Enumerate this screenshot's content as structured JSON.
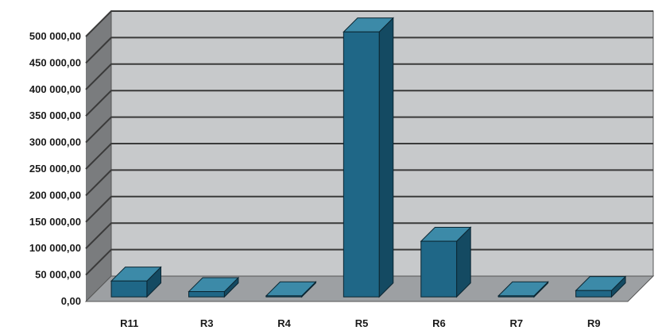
{
  "chart_data": {
    "type": "bar",
    "style": "3d-column",
    "categories": [
      "R11",
      "R3",
      "R4",
      "R5",
      "R6",
      "R7",
      "R9"
    ],
    "values": [
      30000,
      10000,
      2000,
      500000,
      105000,
      2000,
      12000
    ],
    "ylim": [
      0,
      500000
    ],
    "yticks": [
      "0,00",
      "50 000,00",
      "100 000,00",
      "150 000,00",
      "200 000,00",
      "250 000,00",
      "300 000,00",
      "350 000,00",
      "400 000,00",
      "450 000,00",
      "500 000,00"
    ],
    "grid": true,
    "legend": "none",
    "colors": {
      "bar_front": "#1f6787",
      "bar_top": "#3c8aa8",
      "bar_side": "#144a62",
      "wall": "#c7c9cb",
      "side_wall": "#7a7c7e",
      "floor": "#9da0a3",
      "grid": "#3a3a3a"
    }
  }
}
